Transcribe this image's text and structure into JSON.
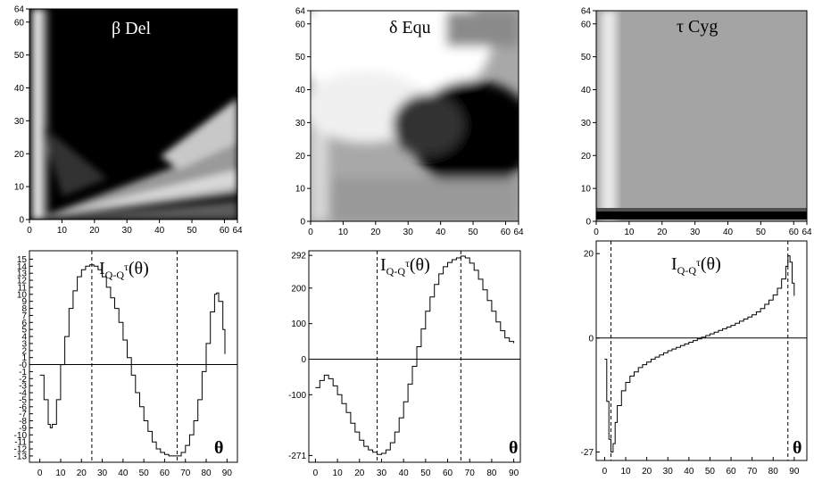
{
  "chart_data": [
    {
      "type": "heatmap",
      "title": "β Del",
      "xlim": [
        0,
        64
      ],
      "ylim": [
        0,
        64
      ],
      "x_ticks": [
        "0",
        "10",
        "20",
        "30",
        "40",
        "50",
        "60",
        "64"
      ],
      "y_ticks": [
        "0",
        "10",
        "20",
        "30",
        "40",
        "50",
        "60",
        "64"
      ],
      "pattern": "dark-wedge",
      "colors": {
        "low": "#000000",
        "high": "#ffffff"
      }
    },
    {
      "type": "heatmap",
      "title": "δ Equ",
      "xlim": [
        0,
        64
      ],
      "ylim": [
        0,
        64
      ],
      "x_ticks": [
        "0",
        "10",
        "20",
        "30",
        "40",
        "50",
        "60",
        "64"
      ],
      "y_ticks": [
        "0",
        "10",
        "20",
        "30",
        "40",
        "50",
        "60",
        "64"
      ],
      "pattern": "dark-blob",
      "colors": {
        "low": "#000000",
        "high": "#ffffff"
      }
    },
    {
      "type": "heatmap",
      "title": "τ Cyg",
      "xlim": [
        0,
        64
      ],
      "ylim": [
        0,
        64
      ],
      "x_ticks": [
        "0",
        "10",
        "20",
        "30",
        "40",
        "50",
        "60",
        "64"
      ],
      "y_ticks": [
        "0",
        "10",
        "20",
        "30",
        "40",
        "50",
        "60",
        "64"
      ],
      "pattern": "uniform-gray",
      "colors": {
        "low": "#000000",
        "high": "#ffffff"
      }
    },
    {
      "type": "line",
      "title": "I",
      "title_sub": "Q-Q",
      "title_sup": "τ",
      "title_suffix": "(θ)",
      "xlabel": "θ",
      "xlim": [
        -5,
        95
      ],
      "ylim": [
        -13.9,
        16.2
      ],
      "x_ticks": [
        "0",
        "10",
        "20",
        "30",
        "40",
        "50",
        "60",
        "70",
        "80",
        "90"
      ],
      "y_ticks": [
        {
          "v": 15,
          "l": "15"
        },
        {
          "v": 14,
          "l": "14"
        },
        {
          "v": 13,
          "l": "13"
        },
        {
          "v": 12,
          "l": "12"
        },
        {
          "v": 11,
          "l": "11"
        },
        {
          "v": 10,
          "l": "10"
        },
        {
          "v": 9,
          "l": "9"
        },
        {
          "v": 8,
          "l": "8"
        },
        {
          "v": 7,
          "l": "7"
        },
        {
          "v": 6,
          "l": "6"
        },
        {
          "v": 5,
          "l": "5"
        },
        {
          "v": 4,
          "l": "4"
        },
        {
          "v": 3,
          "l": "3"
        },
        {
          "v": 2,
          "l": "2"
        },
        {
          "v": 1,
          "l": "1"
        },
        {
          "v": 0,
          "l": "-0"
        },
        {
          "v": -1,
          "l": "-1"
        },
        {
          "v": -2,
          "l": "-2"
        },
        {
          "v": -3,
          "l": "-3"
        },
        {
          "v": -4,
          "l": "-4"
        },
        {
          "v": -5,
          "l": "-5"
        },
        {
          "v": -6,
          "l": "-6"
        },
        {
          "v": -7,
          "l": "-7"
        },
        {
          "v": -8,
          "l": "-8"
        },
        {
          "v": -9,
          "l": "-9"
        },
        {
          "v": -10,
          "l": "-10"
        },
        {
          "v": -11,
          "l": "-11"
        },
        {
          "v": -12,
          "l": "-12"
        },
        {
          "v": -13,
          "l": "-13"
        }
      ],
      "vlines": [
        25,
        66
      ],
      "hline": 0,
      "x": [
        0,
        2,
        4,
        5,
        6,
        8,
        10,
        12,
        14,
        16,
        18,
        20,
        22,
        24,
        25,
        26,
        28,
        30,
        32,
        34,
        36,
        38,
        40,
        42,
        44,
        46,
        48,
        50,
        52,
        54,
        56,
        58,
        60,
        62,
        64,
        66,
        68,
        70,
        72,
        74,
        76,
        78,
        80,
        82,
        84,
        85,
        86,
        88,
        89
      ],
      "y": [
        -1.5,
        -5,
        -8.5,
        -9,
        -8.5,
        -5,
        0,
        4,
        8,
        10.5,
        12.5,
        13.5,
        14,
        14.2,
        14.2,
        14,
        13.5,
        12.5,
        11,
        9.5,
        8,
        6,
        3.5,
        1,
        -1.5,
        -4,
        -6,
        -8,
        -9.5,
        -11,
        -12,
        -12.5,
        -12.8,
        -13,
        -13,
        -13,
        -12.5,
        -11.5,
        -10,
        -8,
        -5,
        -1,
        3,
        7.5,
        10,
        10.2,
        9,
        5,
        1.5
      ]
    },
    {
      "type": "line",
      "title": "I",
      "title_sub": "Q-Q",
      "title_sup": "τ",
      "title_suffix": "(θ)",
      "xlabel": "θ",
      "xlim": [
        -3,
        93
      ],
      "ylim": [
        -290,
        305
      ],
      "x_ticks": [
        "0",
        "10",
        "20",
        "30",
        "40",
        "50",
        "60",
        "70",
        "80",
        "90"
      ],
      "y_ticks": [
        {
          "v": 292,
          "l": "292"
        },
        {
          "v": 200,
          "l": "200"
        },
        {
          "v": 100,
          "l": "100"
        },
        {
          "v": 0,
          "l": "0"
        },
        {
          "v": -100,
          "l": "-100"
        },
        {
          "v": -271,
          "l": "-271"
        }
      ],
      "vlines": [
        28,
        66
      ],
      "hline": 0,
      "x": [
        0,
        2,
        4,
        6,
        8,
        10,
        12,
        14,
        16,
        18,
        20,
        22,
        24,
        26,
        28,
        30,
        32,
        34,
        36,
        38,
        40,
        42,
        44,
        46,
        48,
        50,
        52,
        54,
        56,
        58,
        60,
        62,
        64,
        66,
        68,
        70,
        72,
        74,
        76,
        78,
        80,
        82,
        84,
        86,
        88,
        90
      ],
      "y": [
        -80,
        -60,
        -45,
        -55,
        -75,
        -100,
        -125,
        -150,
        -180,
        -205,
        -228,
        -245,
        -255,
        -262,
        -268,
        -265,
        -255,
        -235,
        -205,
        -165,
        -120,
        -70,
        -20,
        35,
        85,
        135,
        175,
        210,
        240,
        260,
        272,
        280,
        285,
        290,
        285,
        270,
        250,
        225,
        195,
        165,
        135,
        105,
        80,
        60,
        50,
        45
      ]
    },
    {
      "type": "line",
      "title": "I",
      "title_sub": "Q-Q",
      "title_sup": "τ",
      "title_suffix": "(θ)",
      "xlabel": "θ",
      "xlim": [
        -4,
        96
      ],
      "ylim": [
        -29,
        23
      ],
      "x_ticks": [
        "0",
        "10",
        "20",
        "30",
        "40",
        "50",
        "60",
        "70",
        "80",
        "90"
      ],
      "y_ticks": [
        {
          "v": 20,
          "l": "20"
        },
        {
          "v": 0,
          "l": "0"
        },
        {
          "v": -27,
          "l": "-27"
        }
      ],
      "vlines": [
        3,
        87
      ],
      "hline": 0,
      "x": [
        0,
        1,
        2,
        3,
        4,
        5,
        6,
        8,
        10,
        12,
        14,
        16,
        18,
        20,
        22,
        24,
        26,
        28,
        30,
        32,
        34,
        36,
        38,
        40,
        42,
        44,
        46,
        48,
        50,
        52,
        54,
        56,
        58,
        60,
        62,
        64,
        66,
        68,
        70,
        72,
        74,
        76,
        78,
        80,
        82,
        84,
        86,
        87,
        88,
        89,
        90
      ],
      "y": [
        -5,
        -15,
        -24,
        -27,
        -25,
        -20,
        -16,
        -12.5,
        -10.5,
        -9,
        -8,
        -7,
        -6.3,
        -5.7,
        -5,
        -4.5,
        -4,
        -3.5,
        -3,
        -2.6,
        -2.2,
        -1.8,
        -1.4,
        -1,
        -0.6,
        -0.2,
        0.2,
        0.6,
        1,
        1.4,
        1.8,
        2.2,
        2.6,
        3,
        3.5,
        4,
        4.5,
        5,
        5.5,
        6.2,
        7,
        8,
        9,
        10.2,
        11.8,
        14,
        17,
        19.5,
        18,
        13,
        10
      ]
    }
  ]
}
